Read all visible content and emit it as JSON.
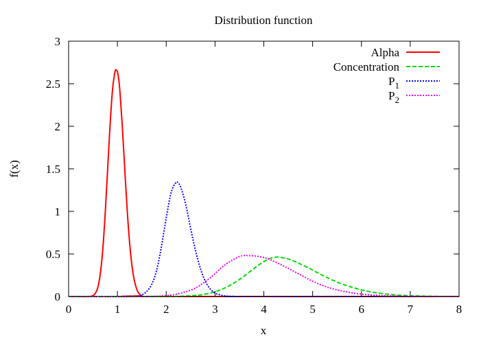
{
  "chart_data": {
    "type": "line",
    "title": "Distribution function",
    "xlabel": "x",
    "ylabel": "f(x)",
    "xlim": [
      0,
      8
    ],
    "ylim": [
      0,
      3
    ],
    "x_ticks": [
      "0",
      "1",
      "2",
      "3",
      "4",
      "5",
      "6",
      "7",
      "8"
    ],
    "y_ticks": [
      "0",
      "0.5",
      "1",
      "1.5",
      "2",
      "2.5",
      "3"
    ],
    "grid": false,
    "legend_position": "top-right",
    "series": [
      {
        "name": "Alpha",
        "name_sub": "",
        "color": "#ff0000",
        "dash": "solid",
        "x": [
          0.4,
          0.5,
          0.55,
          0.6,
          0.65,
          0.7,
          0.75,
          0.8,
          0.85,
          0.9,
          0.95,
          0.98,
          1.0,
          1.02,
          1.05,
          1.1,
          1.15,
          1.2,
          1.25,
          1.3,
          1.35,
          1.4,
          1.45,
          1.5,
          1.6
        ],
        "y": [
          0.0,
          0.01,
          0.04,
          0.11,
          0.27,
          0.55,
          0.98,
          1.5,
          2.02,
          2.43,
          2.64,
          2.66,
          2.64,
          2.58,
          2.42,
          2.0,
          1.5,
          1.02,
          0.63,
          0.35,
          0.18,
          0.08,
          0.03,
          0.01,
          0.0
        ]
      },
      {
        "name": "Concentration",
        "name_sub": "",
        "color": "#00dd00",
        "dash": "dashed",
        "x": [
          2.0,
          2.3,
          2.6,
          2.9,
          3.2,
          3.5,
          3.8,
          4.0,
          4.2,
          4.4,
          4.6,
          4.9,
          5.2,
          5.5,
          5.8,
          6.1,
          6.4,
          6.7,
          7.0,
          7.5,
          8.0
        ],
        "y": [
          0.0,
          0.003,
          0.013,
          0.04,
          0.1,
          0.2,
          0.33,
          0.41,
          0.46,
          0.455,
          0.42,
          0.34,
          0.25,
          0.17,
          0.11,
          0.065,
          0.036,
          0.019,
          0.009,
          0.002,
          0.0005
        ]
      },
      {
        "name": "P",
        "name_sub": "1",
        "color": "#0000ff",
        "dash": "dotted",
        "x": [
          1.3,
          1.5,
          1.6,
          1.7,
          1.8,
          1.9,
          2.0,
          2.1,
          2.2,
          2.25,
          2.3,
          2.4,
          2.5,
          2.6,
          2.7,
          2.8,
          2.9,
          3.0,
          3.1,
          3.2,
          3.4,
          3.6
        ],
        "y": [
          0.0,
          0.02,
          0.06,
          0.14,
          0.3,
          0.58,
          0.92,
          1.22,
          1.34,
          1.33,
          1.28,
          1.08,
          0.8,
          0.54,
          0.33,
          0.18,
          0.09,
          0.04,
          0.02,
          0.007,
          0.001,
          0.0
        ]
      },
      {
        "name": "P",
        "name_sub": "2",
        "color": "#ee00ee",
        "dash": "dotted",
        "x": [
          1.5,
          2.0,
          2.3,
          2.6,
          2.9,
          3.2,
          3.5,
          3.7,
          3.9,
          4.1,
          4.4,
          4.7,
          5.0,
          5.3,
          5.6,
          5.9,
          6.2,
          6.5,
          7.0,
          7.5,
          8.0
        ],
        "y": [
          0.0,
          0.01,
          0.04,
          0.1,
          0.22,
          0.37,
          0.47,
          0.48,
          0.47,
          0.44,
          0.36,
          0.27,
          0.18,
          0.11,
          0.065,
          0.035,
          0.018,
          0.008,
          0.002,
          0.0005,
          0.0001
        ]
      }
    ]
  }
}
